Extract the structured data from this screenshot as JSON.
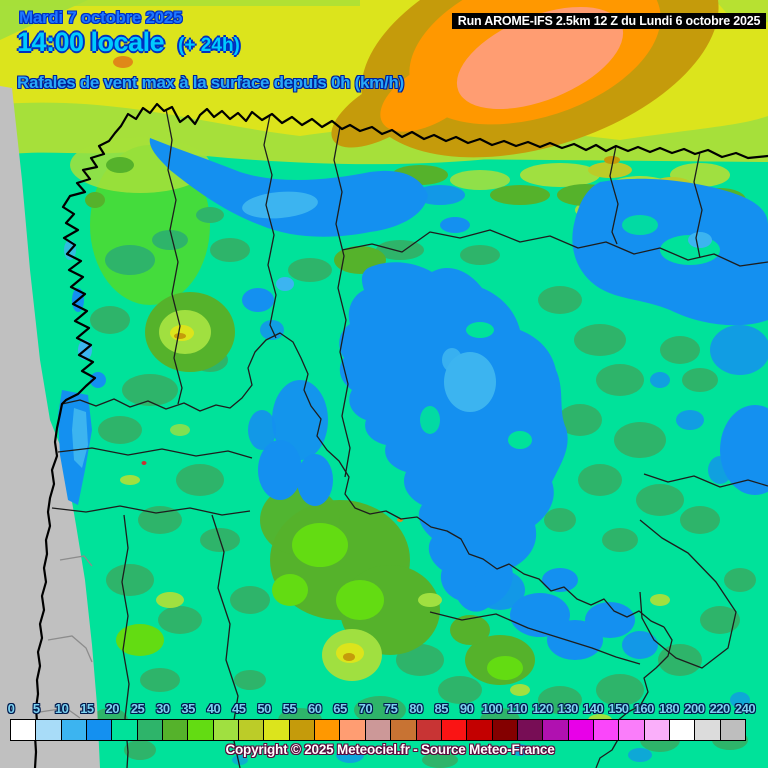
{
  "header": {
    "date": "Mardi 7 octobre 2025",
    "time": "14:00 locale",
    "offset": "(+ 24h)",
    "subtitle": "Rafales de vent max à la surface depuis 0h (km/h)"
  },
  "run_bar": {
    "text": "Run AROME-IFS 2.5km 12 Z du Lundi 6 octobre 2025"
  },
  "footer": {
    "copyright": "Copyright © 2025 Meteociel.fr - Source Meteo-France"
  },
  "legend": {
    "unit": "km/h",
    "tick_labels": [
      "0",
      "5",
      "10",
      "15",
      "20",
      "25",
      "30",
      "35",
      "40",
      "45",
      "50",
      "55",
      "60",
      "65",
      "70",
      "75",
      "80",
      "85",
      "90",
      "100",
      "110",
      "120",
      "130",
      "140",
      "150",
      "160",
      "180",
      "200",
      "220",
      "240"
    ],
    "cell_colors": [
      "#FFFFFF",
      "#A8DCF8",
      "#3CB4F0",
      "#1490F0",
      "#00E29A",
      "#2EB46A",
      "#55B22B",
      "#63DC12",
      "#A0E040",
      "#BCCC28",
      "#DCE41C",
      "#C59B0B",
      "#FF9800",
      "#FF9D72",
      "#CC9898",
      "#C87333",
      "#C83434",
      "#FA1414",
      "#C30000",
      "#840000",
      "#770D55",
      "#B011B0",
      "#E800E8",
      "#FA46FA",
      "#FA7DFA",
      "#FAAFFA",
      "#FFFFFF",
      "#DCDCDC",
      "#BEBEBE"
    ]
  },
  "map_colors": {
    "out_of_domain_gray": "#C0C0C0",
    "dominant_gust_20_25": "#00E29A",
    "calm_blue_15_20": "#1490F0",
    "offshore_max_orange_60_65": "#FF9800",
    "offshore_max_salmon_65_70": "#FF9D72",
    "coast_line": "#000000",
    "border_line": "#1D1D1D"
  }
}
